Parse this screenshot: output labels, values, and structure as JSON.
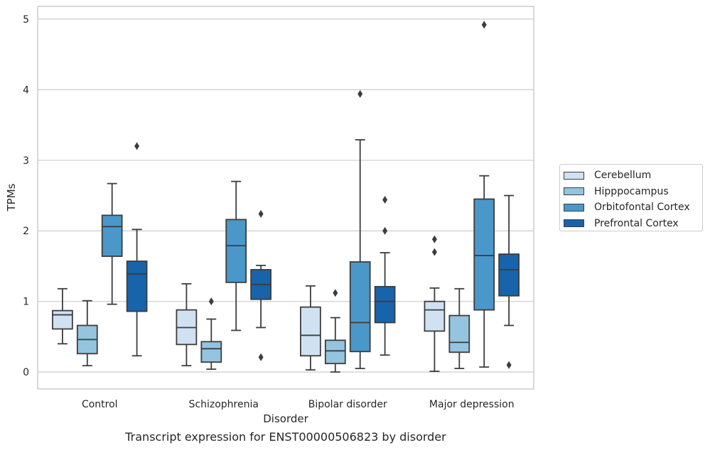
{
  "caption": "Transcript expression for ENST00000506823 by disorder",
  "chart_data": {
    "type": "boxplot",
    "title": "",
    "xlabel": "Disorder",
    "ylabel": "TPMs",
    "categories": [
      "Control",
      "Schizophrenia",
      "Bipolar disorder",
      "Major depression"
    ],
    "ylim": [
      -0.24,
      5.18
    ],
    "yticks": [
      0,
      1,
      2,
      3,
      4,
      5
    ],
    "grid": "horizontal",
    "legend_position": "right",
    "series": [
      {
        "name": "Cerebellum",
        "color": "#d0e1f2",
        "boxes": [
          {
            "whisker_low": 0.4,
            "q1": 0.61,
            "median": 0.81,
            "q3": 0.87,
            "whisker_high": 1.18,
            "outliers": []
          },
          {
            "whisker_low": 0.09,
            "q1": 0.39,
            "median": 0.63,
            "q3": 0.88,
            "whisker_high": 1.25,
            "outliers": []
          },
          {
            "whisker_low": 0.03,
            "q1": 0.23,
            "median": 0.52,
            "q3": 0.92,
            "whisker_high": 1.22,
            "outliers": []
          },
          {
            "whisker_low": 0.01,
            "q1": 0.58,
            "median": 0.88,
            "q3": 1.0,
            "whisker_high": 1.19,
            "outliers": [
              1.88,
              1.7
            ]
          }
        ]
      },
      {
        "name": "Hipppocampus",
        "color": "#94c4df",
        "boxes": [
          {
            "whisker_low": 0.09,
            "q1": 0.26,
            "median": 0.46,
            "q3": 0.66,
            "whisker_high": 1.01,
            "outliers": []
          },
          {
            "whisker_low": 0.04,
            "q1": 0.14,
            "median": 0.33,
            "q3": 0.43,
            "whisker_high": 0.75,
            "outliers": [
              1.0
            ]
          },
          {
            "whisker_low": 0.0,
            "q1": 0.12,
            "median": 0.3,
            "q3": 0.45,
            "whisker_high": 0.77,
            "outliers": [
              1.12
            ]
          },
          {
            "whisker_low": 0.05,
            "q1": 0.28,
            "median": 0.42,
            "q3": 0.8,
            "whisker_high": 1.18,
            "outliers": []
          }
        ]
      },
      {
        "name": "Orbitofontal Cortex",
        "color": "#4a98c9",
        "boxes": [
          {
            "whisker_low": 0.96,
            "q1": 1.64,
            "median": 2.06,
            "q3": 2.22,
            "whisker_high": 2.67,
            "outliers": []
          },
          {
            "whisker_low": 0.59,
            "q1": 1.27,
            "median": 1.79,
            "q3": 2.16,
            "whisker_high": 2.7,
            "outliers": []
          },
          {
            "whisker_low": 0.05,
            "q1": 0.29,
            "median": 0.7,
            "q3": 1.56,
            "whisker_high": 3.29,
            "outliers": [
              3.94
            ]
          },
          {
            "whisker_low": 0.07,
            "q1": 0.88,
            "median": 1.65,
            "q3": 2.45,
            "whisker_high": 2.78,
            "outliers": [
              4.92
            ]
          }
        ]
      },
      {
        "name": "Prefrontal Cortex",
        "color": "#1764ab",
        "boxes": [
          {
            "whisker_low": 0.23,
            "q1": 0.86,
            "median": 1.39,
            "q3": 1.57,
            "whisker_high": 2.02,
            "outliers": [
              3.2
            ]
          },
          {
            "whisker_low": 0.63,
            "q1": 1.03,
            "median": 1.24,
            "q3": 1.45,
            "whisker_high": 1.51,
            "outliers": [
              2.24,
              0.21
            ]
          },
          {
            "whisker_low": 0.24,
            "q1": 0.7,
            "median": 1.0,
            "q3": 1.21,
            "whisker_high": 1.69,
            "outliers": [
              2.44,
              2.0
            ]
          },
          {
            "whisker_low": 0.66,
            "q1": 1.08,
            "median": 1.45,
            "q3": 1.67,
            "whisker_high": 2.5,
            "outliers": [
              0.1
            ]
          }
        ]
      }
    ]
  }
}
